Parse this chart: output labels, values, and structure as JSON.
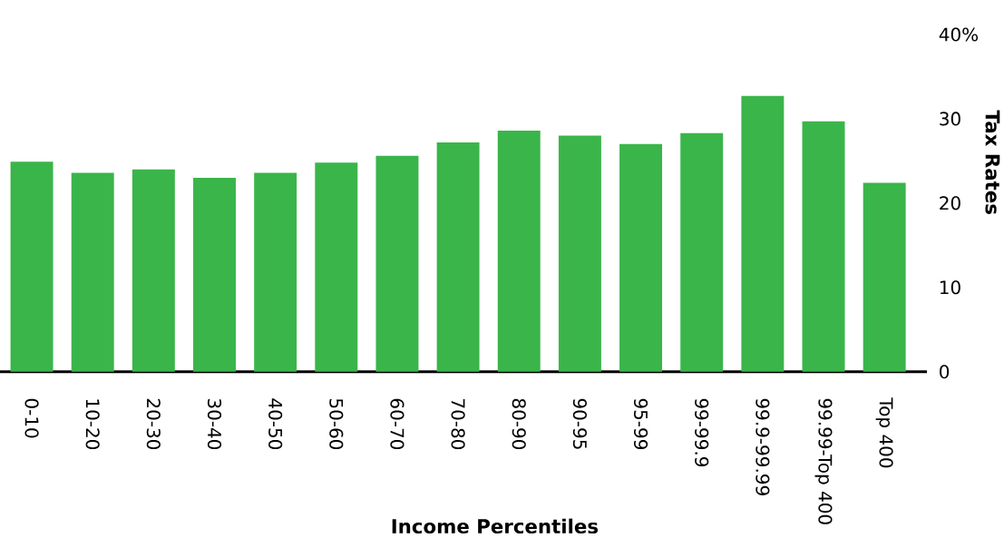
{
  "chart_data": {
    "type": "bar",
    "xlabel": "Income Percentiles",
    "ylabel": "Tax Rates",
    "categories": [
      "0-10",
      "10-20",
      "20-30",
      "30-40",
      "40-50",
      "50-60",
      "60-70",
      "70-80",
      "80-90",
      "90-95",
      "95-99",
      "99-99.9",
      "99.9-99.99",
      "99.99-Top 400",
      "Top 400"
    ],
    "values": [
      24.9,
      23.6,
      24.0,
      23.0,
      23.6,
      24.8,
      25.6,
      27.2,
      28.6,
      28.0,
      27.0,
      28.3,
      32.7,
      29.7,
      22.4
    ],
    "color": "#3ab54a",
    "ylim": [
      0,
      40
    ],
    "yticks": [
      0,
      10,
      20,
      30,
      {
        "value": 40,
        "label": "40%"
      }
    ]
  }
}
